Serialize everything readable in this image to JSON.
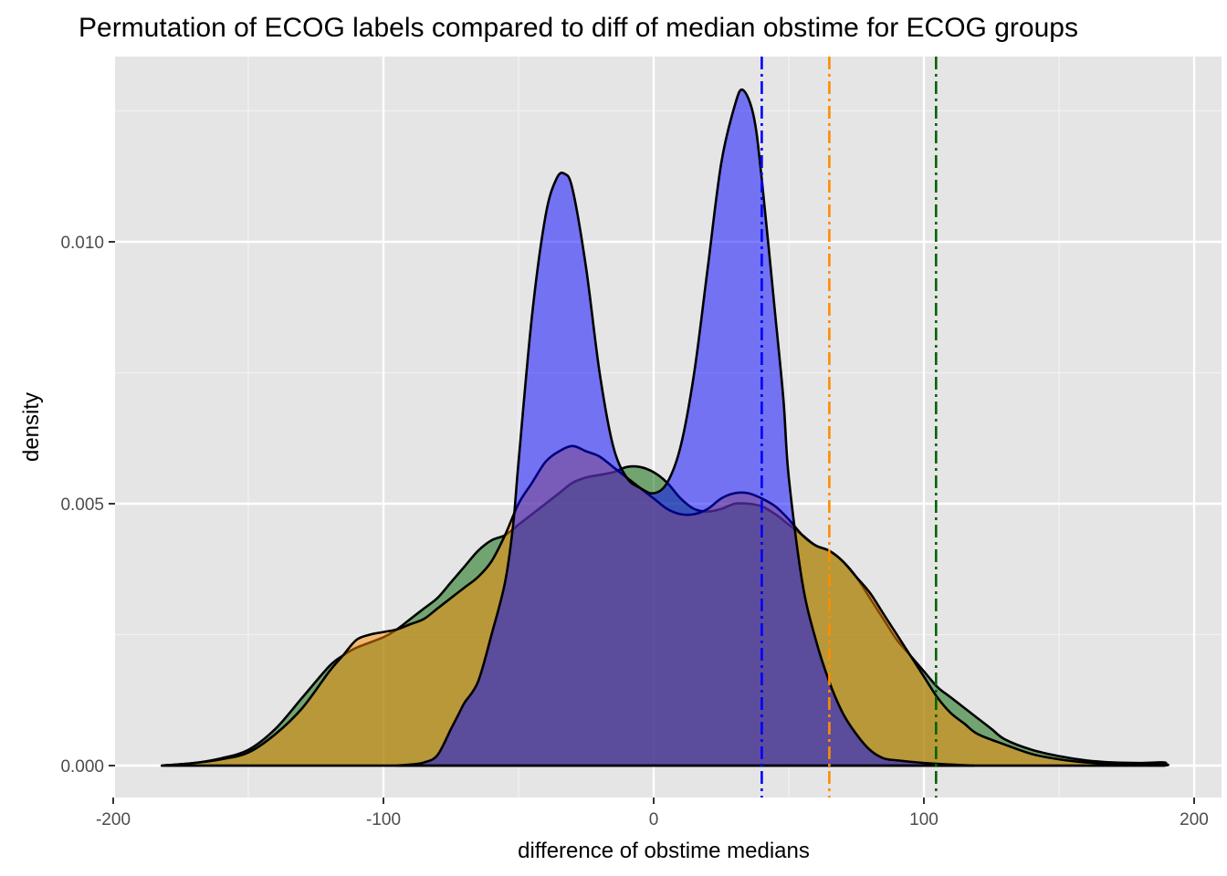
{
  "chart_data": {
    "type": "area",
    "title": "Permutation of ECOG labels compared to diff of median obstime for ECOG groups",
    "xlabel": "difference of obstime medians",
    "ylabel": "density",
    "xlim": [
      -200,
      200
    ],
    "ylim": [
      0,
      0.0131
    ],
    "x_ticks": [
      -200,
      -100,
      0,
      100,
      200
    ],
    "x_tick_labels": [
      "-200",
      "-100",
      "0",
      "100",
      "200"
    ],
    "y_ticks": [
      0,
      0.005,
      0.01
    ],
    "y_tick_labels": [
      "0.000",
      "0.005",
      "0.010"
    ],
    "grid": true,
    "legend": "none",
    "series": [
      {
        "fill": "#006400",
        "points": [
          [
            -182,
            0
          ],
          [
            -170,
            5e-05
          ],
          [
            -160,
            0.00014
          ],
          [
            -150,
            0.0003
          ],
          [
            -140,
            0.0007
          ],
          [
            -130,
            0.0013
          ],
          [
            -120,
            0.0019
          ],
          [
            -115,
            0.0021
          ],
          [
            -110,
            0.00225
          ],
          [
            -100,
            0.00245
          ],
          [
            -95,
            0.0026
          ],
          [
            -90,
            0.0028
          ],
          [
            -85,
            0.003
          ],
          [
            -80,
            0.0032
          ],
          [
            -75,
            0.0035
          ],
          [
            -70,
            0.0038
          ],
          [
            -65,
            0.0041
          ],
          [
            -60,
            0.0043
          ],
          [
            -55,
            0.0044
          ],
          [
            -50,
            0.0046
          ],
          [
            -45,
            0.0048
          ],
          [
            -40,
            0.005
          ],
          [
            -35,
            0.0052
          ],
          [
            -30,
            0.0054
          ],
          [
            -25,
            0.0055
          ],
          [
            -20,
            0.00555
          ],
          [
            -15,
            0.0056
          ],
          [
            -10,
            0.0057
          ],
          [
            -5,
            0.0057
          ],
          [
            0,
            0.0056
          ],
          [
            5,
            0.0054
          ],
          [
            10,
            0.0051
          ],
          [
            15,
            0.0049
          ],
          [
            20,
            0.00485
          ],
          [
            25,
            0.0049
          ],
          [
            30,
            0.005
          ],
          [
            35,
            0.005
          ],
          [
            40,
            0.00495
          ],
          [
            45,
            0.0048
          ],
          [
            50,
            0.0046
          ],
          [
            55,
            0.0044
          ],
          [
            60,
            0.0042
          ],
          [
            65,
            0.0041
          ],
          [
            70,
            0.0039
          ],
          [
            75,
            0.0036
          ],
          [
            80,
            0.0032
          ],
          [
            85,
            0.0028
          ],
          [
            90,
            0.0024
          ],
          [
            95,
            0.0021
          ],
          [
            100,
            0.0018
          ],
          [
            105,
            0.0015
          ],
          [
            110,
            0.0013
          ],
          [
            115,
            0.0011
          ],
          [
            120,
            0.0009
          ],
          [
            125,
            0.0007
          ],
          [
            130,
            0.0005
          ],
          [
            140,
            0.0003
          ],
          [
            150,
            0.00018
          ],
          [
            160,
            0.0001
          ],
          [
            170,
            6e-05
          ],
          [
            180,
            5e-05
          ],
          [
            189,
            6e-05
          ],
          [
            189,
            0
          ]
        ]
      },
      {
        "fill": "#ff8c00",
        "points": [
          [
            -182,
            0
          ],
          [
            -170,
            5e-05
          ],
          [
            -160,
            0.00012
          ],
          [
            -150,
            0.00025
          ],
          [
            -140,
            0.0006
          ],
          [
            -130,
            0.0011
          ],
          [
            -120,
            0.0018
          ],
          [
            -115,
            0.0021
          ],
          [
            -110,
            0.0024
          ],
          [
            -105,
            0.0025
          ],
          [
            -100,
            0.00255
          ],
          [
            -95,
            0.0026
          ],
          [
            -90,
            0.0027
          ],
          [
            -85,
            0.0028
          ],
          [
            -80,
            0.003
          ],
          [
            -75,
            0.0032
          ],
          [
            -70,
            0.0034
          ],
          [
            -65,
            0.0036
          ],
          [
            -60,
            0.0039
          ],
          [
            -55,
            0.0044
          ],
          [
            -50,
            0.005
          ],
          [
            -45,
            0.0054
          ],
          [
            -40,
            0.0058
          ],
          [
            -35,
            0.006
          ],
          [
            -30,
            0.0061
          ],
          [
            -25,
            0.006
          ],
          [
            -20,
            0.0059
          ],
          [
            -15,
            0.0057
          ],
          [
            -10,
            0.0055
          ],
          [
            -5,
            0.0053
          ],
          [
            0,
            0.0051
          ],
          [
            5,
            0.0049
          ],
          [
            10,
            0.0048
          ],
          [
            15,
            0.0048
          ],
          [
            20,
            0.0049
          ],
          [
            25,
            0.0051
          ],
          [
            30,
            0.0052
          ],
          [
            35,
            0.0052
          ],
          [
            40,
            0.0051
          ],
          [
            45,
            0.00495
          ],
          [
            50,
            0.0047
          ],
          [
            55,
            0.0044
          ],
          [
            60,
            0.0042
          ],
          [
            65,
            0.0041
          ],
          [
            70,
            0.0039
          ],
          [
            75,
            0.0036
          ],
          [
            80,
            0.0033
          ],
          [
            85,
            0.0029
          ],
          [
            90,
            0.0025
          ],
          [
            95,
            0.0021
          ],
          [
            100,
            0.0017
          ],
          [
            105,
            0.0013
          ],
          [
            110,
            0.001
          ],
          [
            115,
            0.0008
          ],
          [
            120,
            0.0006
          ],
          [
            130,
            0.0004
          ],
          [
            140,
            0.00022
          ],
          [
            150,
            0.00012
          ],
          [
            160,
            6e-05
          ],
          [
            170,
            3e-05
          ],
          [
            189,
            2e-05
          ],
          [
            189,
            0
          ]
        ]
      },
      {
        "fill": "#0000ff",
        "points": [
          [
            -95,
            0
          ],
          [
            -90,
            2e-05
          ],
          [
            -85,
            6e-05
          ],
          [
            -80,
            0.0002
          ],
          [
            -75,
            0.0007
          ],
          [
            -72,
            0.001
          ],
          [
            -70,
            0.0012
          ],
          [
            -65,
            0.0016
          ],
          [
            -60,
            0.0025
          ],
          [
            -55,
            0.0035
          ],
          [
            -52,
            0.0046
          ],
          [
            -50,
            0.0058
          ],
          [
            -45,
            0.0086
          ],
          [
            -40,
            0.0105
          ],
          [
            -36,
            0.0112
          ],
          [
            -33,
            0.0113
          ],
          [
            -30,
            0.011
          ],
          [
            -25,
            0.0095
          ],
          [
            -20,
            0.0075
          ],
          [
            -15,
            0.0061
          ],
          [
            -10,
            0.0055
          ],
          [
            -5,
            0.0053
          ],
          [
            0,
            0.0052
          ],
          [
            5,
            0.0054
          ],
          [
            10,
            0.0061
          ],
          [
            15,
            0.0075
          ],
          [
            20,
            0.0095
          ],
          [
            25,
            0.0115
          ],
          [
            30,
            0.0126
          ],
          [
            33,
            0.0129
          ],
          [
            37,
            0.0124
          ],
          [
            40,
            0.0112
          ],
          [
            45,
            0.0086
          ],
          [
            48,
            0.007
          ],
          [
            50,
            0.0055
          ],
          [
            55,
            0.0035
          ],
          [
            60,
            0.0024
          ],
          [
            65,
            0.0016
          ],
          [
            70,
            0.001
          ],
          [
            75,
            0.0006
          ],
          [
            80,
            0.0003
          ],
          [
            85,
            0.00014
          ],
          [
            90,
            0.0001
          ],
          [
            100,
            5e-05
          ],
          [
            110,
            2e-05
          ],
          [
            118,
            0
          ],
          [
            118,
            0
          ]
        ]
      }
    ],
    "reference_lines": [
      {
        "x": 40,
        "color": "#0000ff",
        "style": "dashdot"
      },
      {
        "x": 65,
        "color": "#ff8c00",
        "style": "dashdot"
      },
      {
        "x": 104.5,
        "color": "#006400",
        "style": "dashdot"
      }
    ]
  }
}
